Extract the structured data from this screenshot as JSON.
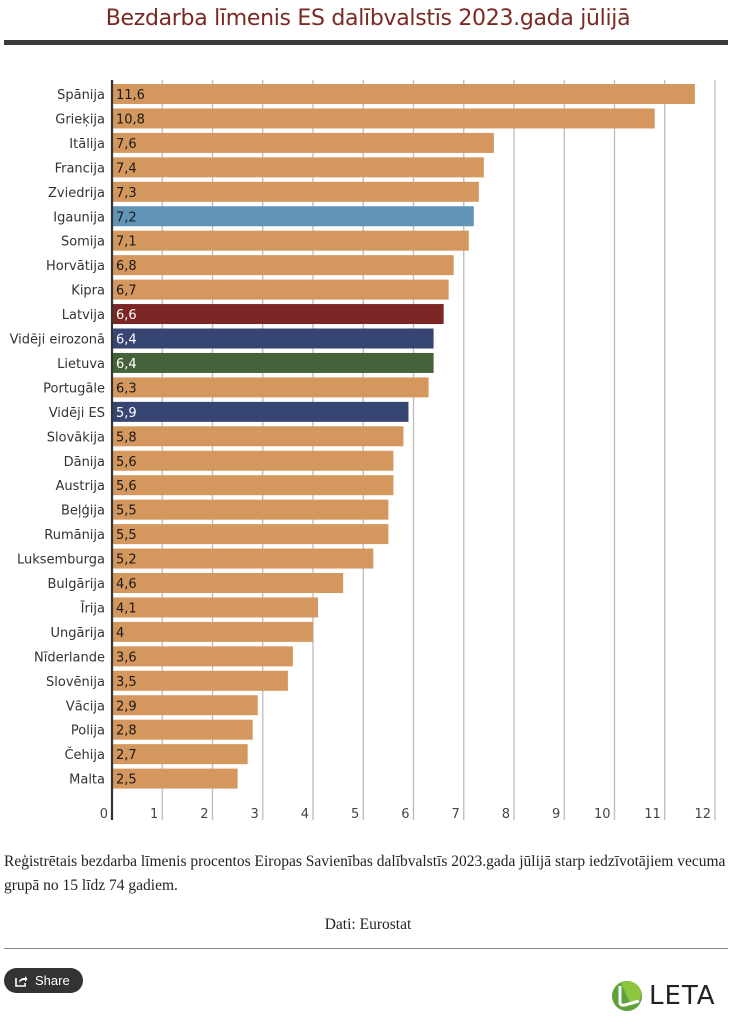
{
  "header": {
    "title": "Bezdarba līmenis ES dalībvalstīs 2023.gada jūlijā"
  },
  "colors": {
    "default": "#d4985f",
    "estonia": "#6195b8",
    "latvia": "#7a2624",
    "average": "#364572",
    "lithuania": "#45623a",
    "title": "#7a2a22"
  },
  "chart_data": {
    "type": "bar",
    "orientation": "horizontal",
    "title": "Bezdarba līmenis ES dalībvalstīs 2023.gada jūlijā",
    "xlabel": "",
    "ylabel": "",
    "xlim": [
      0,
      12
    ],
    "ticks": [
      "0",
      "1",
      "2",
      "3",
      "4",
      "5",
      "6",
      "7",
      "8",
      "9",
      "10",
      "11",
      "12"
    ],
    "grid": true,
    "categories": [
      "Spānija",
      "Grieķija",
      "Itālija",
      "Francija",
      "Zviedrija",
      "Igaunija",
      "Somija",
      "Horvātija",
      "Kipra",
      "Latvija",
      "Vidēji eirozonā",
      "Lietuva",
      "Portugāle",
      "Vidēji ES",
      "Slovākija",
      "Dānija",
      "Austrija",
      "Beļģija",
      "Rumānija",
      "Luksemburga",
      "Bulgārija",
      "Īrija",
      "Ungārija",
      "Nīderlande",
      "Slovēnija",
      "Vācija",
      "Polija",
      "Čehija",
      "Malta"
    ],
    "values": [
      11.6,
      10.8,
      7.6,
      7.4,
      7.3,
      7.2,
      7.1,
      6.8,
      6.7,
      6.6,
      6.4,
      6.4,
      6.3,
      5.9,
      5.8,
      5.6,
      5.6,
      5.5,
      5.5,
      5.2,
      4.6,
      4.1,
      4.0,
      3.6,
      3.5,
      2.9,
      2.8,
      2.7,
      2.5
    ],
    "value_labels": [
      "11,6",
      "10,8",
      "7,6",
      "7,4",
      "7,3",
      "7,2",
      "7,1",
      "6,8",
      "6,7",
      "6,6",
      "6,4",
      "6,4",
      "6,3",
      "5,9",
      "5,8",
      "5,6",
      "5,6",
      "5,5",
      "5,5",
      "5,2",
      "4,6",
      "4,1",
      "4",
      "3,6",
      "3,5",
      "2,9",
      "2,8",
      "2,7",
      "2,5"
    ],
    "highlight": {
      "Igaunija": "estonia",
      "Latvija": "latvia",
      "Vidēji eirozonā": "average",
      "Lietuva": "lithuania",
      "Vidēji ES": "average"
    }
  },
  "footer": {
    "caption": "Reģistrētais bezdarba līmenis procentos Eiropas Savienības dalībvalstīs 2023.gada jūlijā starp iedzīvotājiem vecuma grupā no 15 līdz 74 gadiem.",
    "source": "Dati: Eurostat",
    "share_label": "Share",
    "share_icon": "share-icon",
    "logo_text": "LETA"
  }
}
